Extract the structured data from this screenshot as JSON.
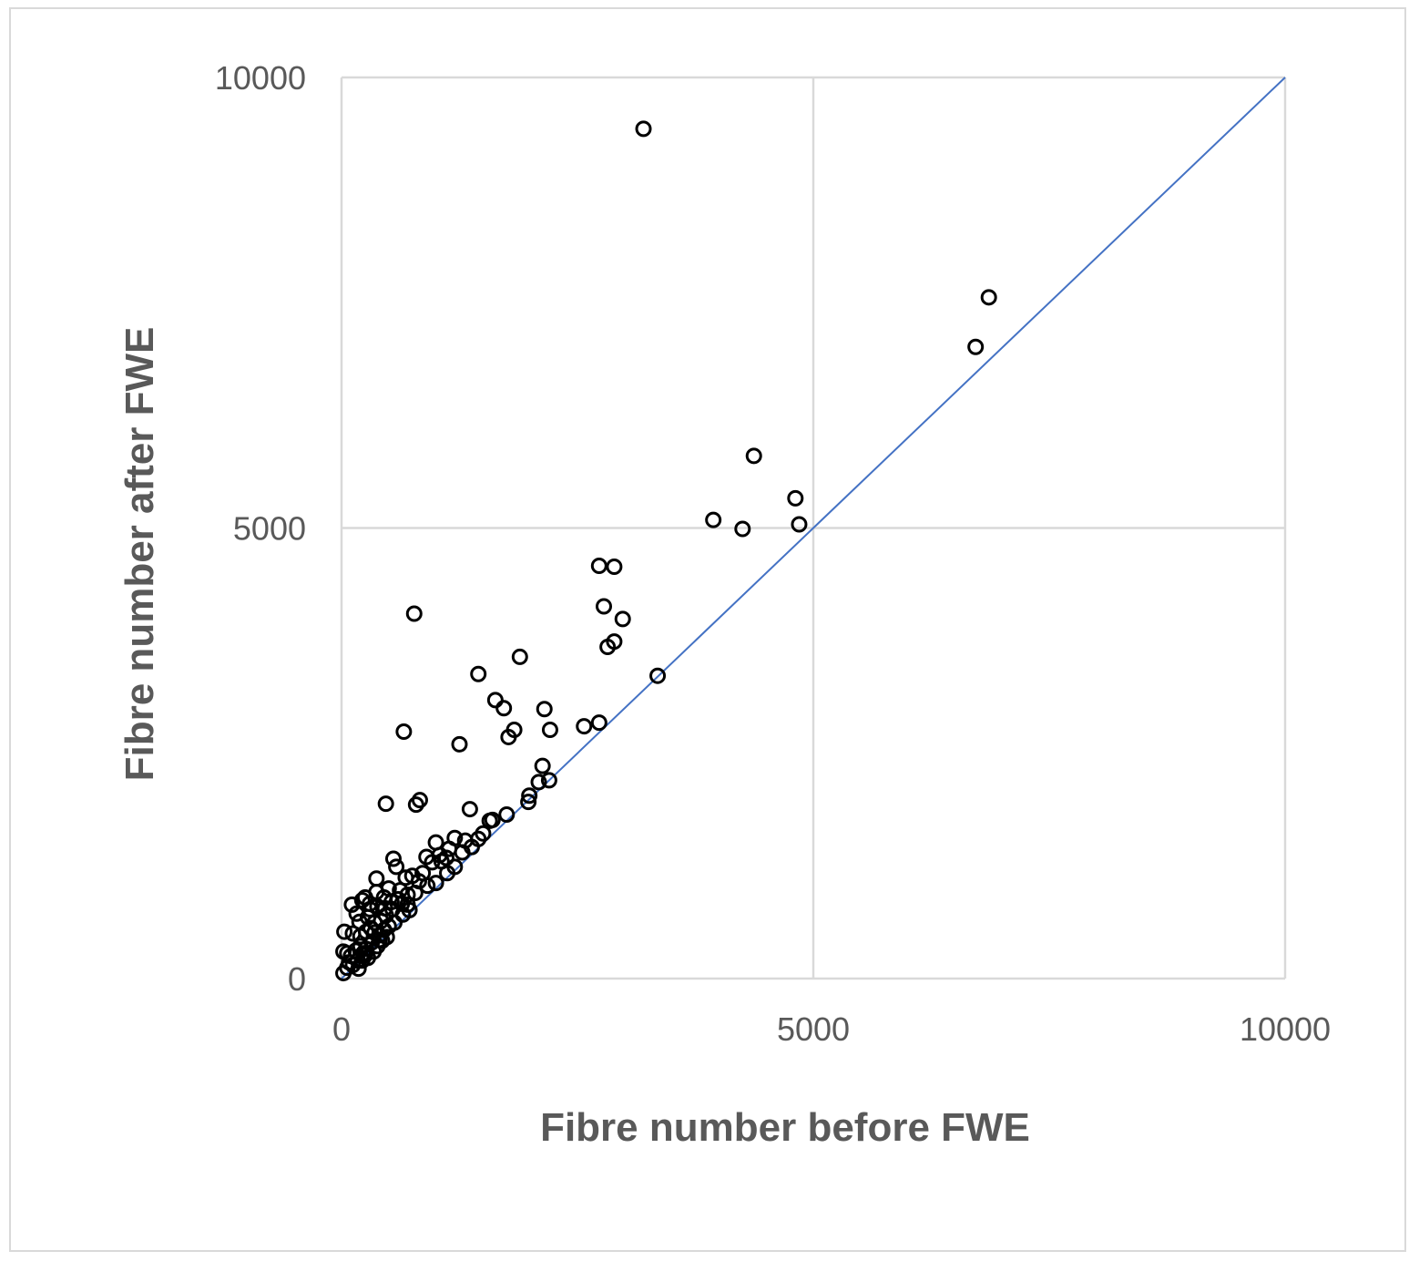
{
  "chart_data": {
    "type": "scatter",
    "title": "",
    "xlabel": "Fibre number before FWE",
    "ylabel": "Fibre number after FWE",
    "xlim": [
      0,
      10000
    ],
    "ylim": [
      0,
      10000
    ],
    "x_ticks": [
      "0",
      "5000",
      "10000"
    ],
    "y_ticks": [
      "0",
      "5000",
      "10000"
    ],
    "grid": true,
    "legend": "none",
    "colors": {
      "points": "#000000",
      "reference_line": "#4472c4",
      "grid": "#d9d9d9",
      "text": "#595959"
    },
    "reference_line": {
      "x": [
        0,
        10000
      ],
      "y": [
        0,
        10000
      ]
    },
    "series": [
      {
        "marker": "open-circle",
        "points": [
          [
            3200,
            9430
          ],
          [
            6860,
            7560
          ],
          [
            6720,
            7010
          ],
          [
            4370,
            5800
          ],
          [
            4810,
            5330
          ],
          [
            3940,
            5090
          ],
          [
            4250,
            4990
          ],
          [
            4850,
            5040
          ],
          [
            2730,
            4580
          ],
          [
            2890,
            4570
          ],
          [
            770,
            4050
          ],
          [
            2780,
            4130
          ],
          [
            2980,
            3990
          ],
          [
            2820,
            3680
          ],
          [
            2890,
            3740
          ],
          [
            1890,
            3570
          ],
          [
            1450,
            3380
          ],
          [
            3350,
            3360
          ],
          [
            1630,
            3090
          ],
          [
            1720,
            3000
          ],
          [
            2150,
            2990
          ],
          [
            1830,
            2760
          ],
          [
            2210,
            2760
          ],
          [
            2570,
            2800
          ],
          [
            2730,
            2840
          ],
          [
            660,
            2740
          ],
          [
            1250,
            2600
          ],
          [
            1770,
            2680
          ],
          [
            2130,
            2360
          ],
          [
            2090,
            2180
          ],
          [
            2200,
            2200
          ],
          [
            1990,
            2030
          ],
          [
            1980,
            1960
          ],
          [
            1750,
            1820
          ],
          [
            1600,
            1760
          ],
          [
            1360,
            1880
          ],
          [
            830,
            1980
          ],
          [
            470,
            1940
          ],
          [
            790,
            1930
          ],
          [
            1570,
            1750
          ],
          [
            1500,
            1610
          ],
          [
            1450,
            1550
          ],
          [
            1380,
            1460
          ],
          [
            1310,
            1530
          ],
          [
            1200,
            1560
          ],
          [
            1140,
            1440
          ],
          [
            1280,
            1400
          ],
          [
            1000,
            1510
          ],
          [
            1060,
            1300
          ],
          [
            1110,
            1340
          ],
          [
            1040,
            1370
          ],
          [
            900,
            1350
          ],
          [
            960,
            1290
          ],
          [
            860,
            1170
          ],
          [
            550,
            1330
          ],
          [
            580,
            1240
          ],
          [
            680,
            1120
          ],
          [
            750,
            1140
          ],
          [
            820,
            1080
          ],
          [
            910,
            1030
          ],
          [
            1000,
            1060
          ],
          [
            1120,
            1170
          ],
          [
            1200,
            1240
          ],
          [
            370,
            1110
          ],
          [
            500,
            1000
          ],
          [
            620,
            980
          ],
          [
            700,
            930
          ],
          [
            780,
            950
          ],
          [
            600,
            880
          ],
          [
            530,
            850
          ],
          [
            450,
            900
          ],
          [
            370,
            960
          ],
          [
            250,
            900
          ],
          [
            220,
            870
          ],
          [
            300,
            830
          ],
          [
            110,
            820
          ],
          [
            300,
            770
          ],
          [
            380,
            800
          ],
          [
            460,
            780
          ],
          [
            540,
            770
          ],
          [
            640,
            830
          ],
          [
            700,
            820
          ],
          [
            160,
            720
          ],
          [
            190,
            630
          ],
          [
            280,
            680
          ],
          [
            350,
            620
          ],
          [
            420,
            640
          ],
          [
            470,
            700
          ],
          [
            30,
            520
          ],
          [
            120,
            500
          ],
          [
            200,
            470
          ],
          [
            260,
            520
          ],
          [
            310,
            560
          ],
          [
            350,
            510
          ],
          [
            400,
            480
          ],
          [
            450,
            540
          ],
          [
            500,
            580
          ],
          [
            560,
            620
          ],
          [
            650,
            710
          ],
          [
            720,
            760
          ],
          [
            20,
            300
          ],
          [
            60,
            280
          ],
          [
            100,
            250
          ],
          [
            150,
            310
          ],
          [
            170,
            200
          ],
          [
            200,
            360
          ],
          [
            230,
            280
          ],
          [
            260,
            330
          ],
          [
            280,
            230
          ],
          [
            320,
            400
          ],
          [
            340,
            300
          ],
          [
            380,
            360
          ],
          [
            400,
            430
          ],
          [
            430,
            420
          ],
          [
            480,
            460
          ],
          [
            60,
            120
          ],
          [
            80,
            180
          ],
          [
            120,
            150
          ],
          [
            180,
            110
          ],
          [
            220,
            200
          ],
          [
            250,
            260
          ],
          [
            20,
            60
          ]
        ]
      }
    ]
  }
}
